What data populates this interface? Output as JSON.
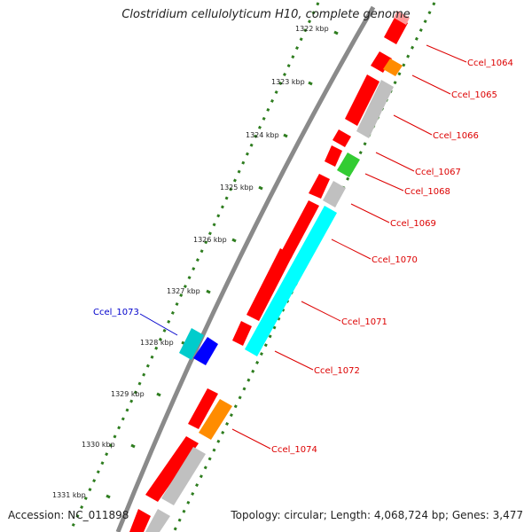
{
  "title": "Clostridium cellulolyticum H10, complete genome",
  "accession_text": "Accession: NC_011898",
  "summary_text": "Topology: circular; Length: 4,068,724 bp; Genes: 3,477",
  "colors": {
    "backbone": "#8a8a8a",
    "tick_dots": "#2e7d1f",
    "red": "#ff0000",
    "orange": "#ff8c00",
    "gray": "#c0c0c0",
    "green": "#33cc33",
    "cyan": "#00ffff",
    "teal": "#00cccc",
    "blue": "#0000ff",
    "pink": "#ff9999",
    "label_red": "#dd0000",
    "label_blue": "#0000cc"
  },
  "scale_ticks": [
    "1322 kbp",
    "1323 kbp",
    "1324 kbp",
    "1325 kbp",
    "1326 kbp",
    "1327 kbp",
    "1328 kbp",
    "1329 kbp",
    "1330 kbp",
    "1331 kbp"
  ],
  "gene_labels": [
    {
      "text": "Ccel_1064",
      "color": "label_red"
    },
    {
      "text": "Ccel_1065",
      "color": "label_red"
    },
    {
      "text": "Ccel_1066",
      "color": "label_red"
    },
    {
      "text": "Ccel_1067",
      "color": "label_red"
    },
    {
      "text": "Ccel_1068",
      "color": "label_red"
    },
    {
      "text": "Ccel_1069",
      "color": "label_red"
    },
    {
      "text": "Ccel_1070",
      "color": "label_red"
    },
    {
      "text": "Ccel_1071",
      "color": "label_red"
    },
    {
      "text": "Ccel_1072",
      "color": "label_red"
    },
    {
      "text": "Ccel_1073",
      "color": "label_blue"
    },
    {
      "text": "Ccel_1074",
      "color": "label_red"
    }
  ]
}
